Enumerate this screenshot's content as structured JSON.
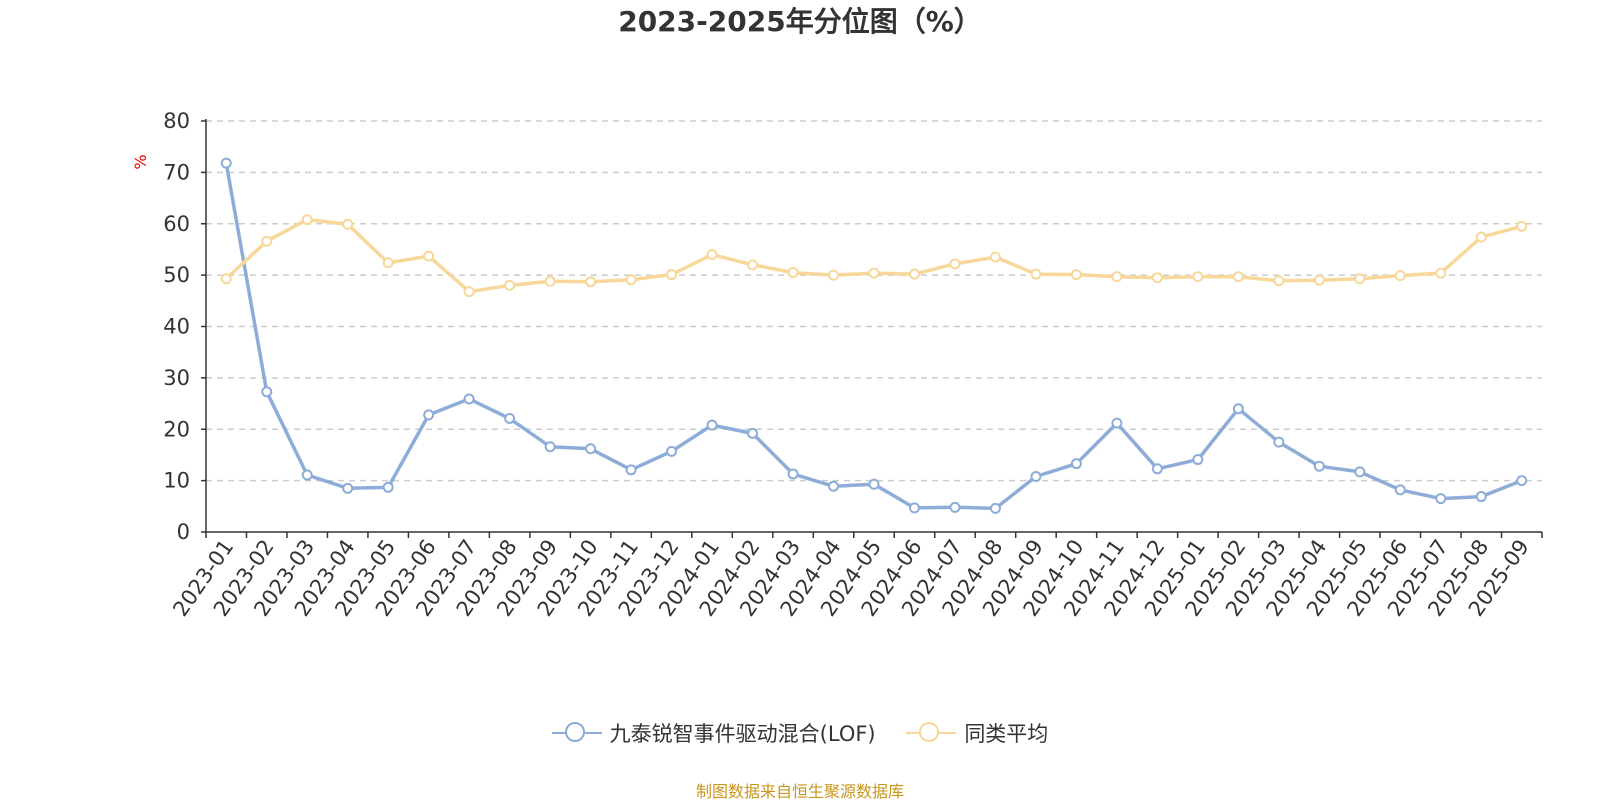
{
  "chart_data": {
    "type": "line",
    "title": "2023-2025年分位图（%）",
    "ylabel": "%",
    "xlabel": "",
    "ylim": [
      0,
      80
    ],
    "yticks": [
      0,
      10,
      20,
      30,
      40,
      50,
      60,
      70,
      80
    ],
    "grid": true,
    "legend_position": "bottom-center",
    "categories": [
      "2023-01",
      "2023-02",
      "2023-03",
      "2023-04",
      "2023-05",
      "2023-06",
      "2023-07",
      "2023-08",
      "2023-09",
      "2023-10",
      "2023-11",
      "2023-12",
      "2024-01",
      "2024-02",
      "2024-03",
      "2024-04",
      "2024-05",
      "2024-06",
      "2024-07",
      "2024-08",
      "2024-09",
      "2024-10",
      "2024-11",
      "2024-12",
      "2025-01",
      "2025-02",
      "2025-03",
      "2025-04",
      "2025-05",
      "2025-06",
      "2025-07",
      "2025-08",
      "2025-09"
    ],
    "series": [
      {
        "name": "九泰锐智事件驱动混合(LOF)",
        "color": "#8eacd8",
        "values": [
          71.8,
          27.3,
          11.1,
          8.5,
          8.7,
          22.8,
          25.9,
          22.1,
          16.6,
          16.2,
          12.1,
          15.7,
          20.8,
          19.2,
          11.3,
          8.9,
          9.3,
          4.7,
          4.8,
          4.6,
          10.8,
          13.3,
          21.2,
          12.3,
          14.1,
          24.0,
          17.5,
          12.8,
          11.7,
          8.2,
          6.5,
          6.9,
          10.0
        ]
      },
      {
        "name": "同类平均",
        "color": "#f8d89a",
        "values": [
          49.3,
          56.6,
          60.8,
          59.9,
          52.4,
          53.7,
          46.8,
          48.0,
          48.8,
          48.7,
          49.1,
          50.1,
          54.0,
          52.0,
          50.5,
          50.0,
          50.4,
          50.2,
          52.2,
          53.5,
          50.2,
          50.1,
          49.7,
          49.5,
          49.7,
          49.7,
          48.9,
          49.0,
          49.3,
          49.9,
          50.4,
          57.4,
          59.5
        ]
      }
    ]
  },
  "source_note": "制图数据来自恒生聚源数据库"
}
